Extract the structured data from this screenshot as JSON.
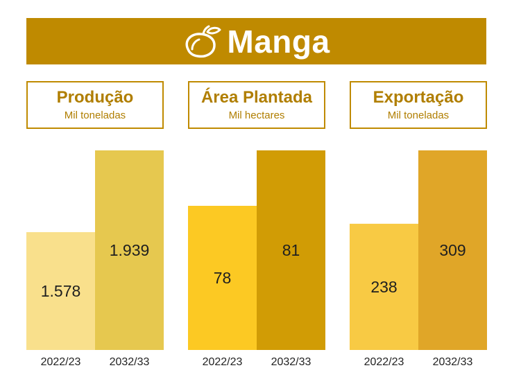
{
  "banner": {
    "title": "Manga",
    "icon": "mango-icon"
  },
  "chart_data": [
    {
      "type": "bar",
      "title": "Produção",
      "subtitle": "Mil toneladas",
      "categories": [
        "2022/23",
        "2032/33"
      ],
      "values": [
        1578,
        1939
      ],
      "value_labels": [
        "1.578",
        "1.939"
      ],
      "colors": [
        "#f9e08c",
        "#e6c84f"
      ]
    },
    {
      "type": "bar",
      "title": "Área Plantada",
      "subtitle": "Mil hectares",
      "categories": [
        "2022/23",
        "2032/33"
      ],
      "values": [
        78,
        81
      ],
      "value_labels": [
        "78",
        "81"
      ],
      "colors": [
        "#fcc923",
        "#d19c05"
      ]
    },
    {
      "type": "bar",
      "title": "Exportação",
      "subtitle": "Mil toneladas",
      "categories": [
        "2022/23",
        "2032/33"
      ],
      "values": [
        238,
        309
      ],
      "value_labels": [
        "238",
        "309"
      ],
      "colors": [
        "#f8ca44",
        "#e0a628"
      ]
    }
  ],
  "colors": {
    "accent": "#bf8a00",
    "text": "#1f1f1f"
  }
}
